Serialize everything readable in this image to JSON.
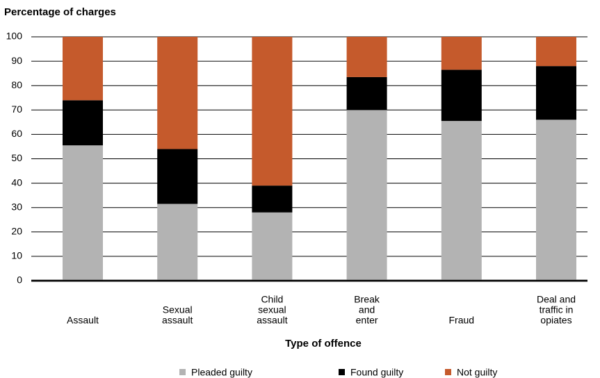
{
  "chart_data": {
    "type": "stacked_bar",
    "y_axis_title": "Percentage of charges",
    "x_axis_title": "Type of offence",
    "categories": [
      [
        "Assault"
      ],
      [
        "Sexual",
        "assault"
      ],
      [
        "Child",
        "sexual",
        "assault"
      ],
      [
        "Break",
        "and",
        "enter"
      ],
      [
        "Fraud"
      ],
      [
        "Deal and",
        "traffic in",
        "opiates"
      ]
    ],
    "series": [
      {
        "name": "Pleaded guilty",
        "color": "#b3b3b3",
        "values": [
          55.5,
          31.5,
          28,
          70,
          65.5,
          66
        ]
      },
      {
        "name": "Found guilty",
        "color": "#000000",
        "values": [
          18.5,
          22.5,
          11,
          13.5,
          21,
          22
        ]
      },
      {
        "name": "Not guilty",
        "color": "#c55a2c",
        "values": [
          26,
          46,
          61,
          16.5,
          13.5,
          12
        ]
      }
    ],
    "ylim": [
      0,
      100
    ],
    "yticks": [
      0,
      10,
      20,
      30,
      40,
      50,
      60,
      70,
      80,
      90,
      100
    ],
    "grid": true
  }
}
